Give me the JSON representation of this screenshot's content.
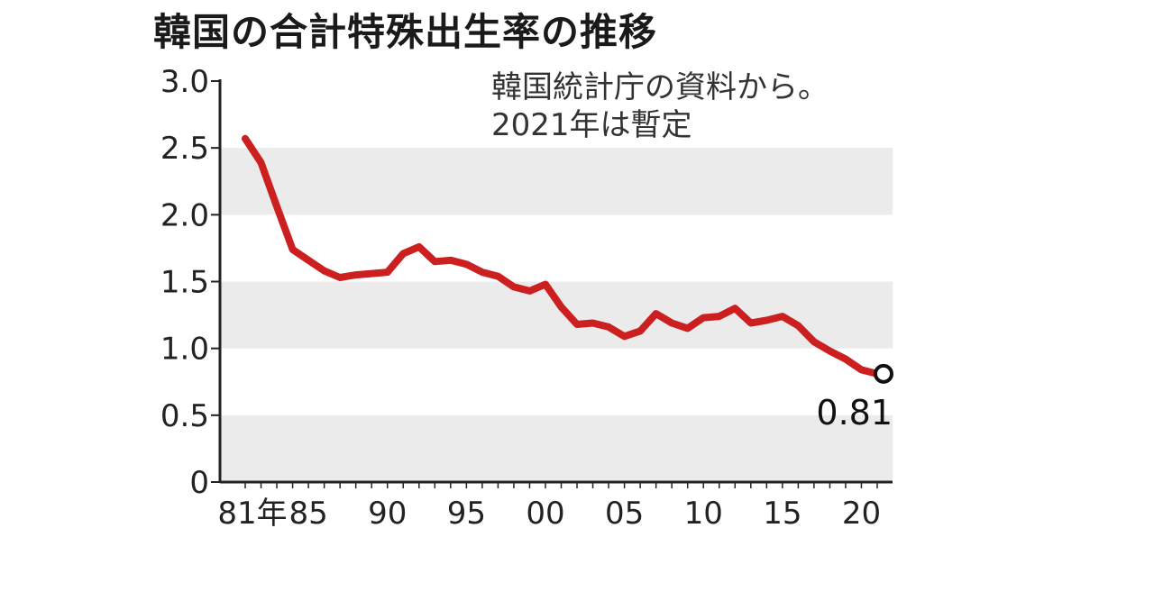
{
  "chart_data": {
    "type": "line",
    "title": "韓国の合計特殊出生率の推移",
    "note_lines": [
      "韓国統計庁の資料から。",
      "2021年は暫定"
    ],
    "xlabel": "",
    "ylabel": "",
    "ylim": [
      0,
      3.0
    ],
    "xlim": [
      1981,
      2021
    ],
    "yticks": [
      0,
      0.5,
      1.0,
      1.5,
      2.0,
      2.5,
      3.0
    ],
    "ytick_labels": [
      "0",
      "0.5",
      "1.0",
      "1.5",
      "2.0",
      "2.5",
      "3.0"
    ],
    "xticks": [
      1981,
      1985,
      1990,
      1995,
      2000,
      2005,
      2010,
      2015,
      2020
    ],
    "xtick_labels": [
      "81年",
      "85",
      "90",
      "95",
      "00",
      "05",
      "10",
      "15",
      "20"
    ],
    "grid": "alternating horizontal bands",
    "series": [
      {
        "color": "#cc1f1f",
        "x": [
          1981,
          1982,
          1983,
          1984,
          1985,
          1986,
          1987,
          1988,
          1989,
          1990,
          1991,
          1992,
          1993,
          1994,
          1995,
          1996,
          1997,
          1998,
          1999,
          2000,
          2001,
          2002,
          2003,
          2004,
          2005,
          2006,
          2007,
          2008,
          2009,
          2010,
          2011,
          2012,
          2013,
          2014,
          2015,
          2016,
          2017,
          2018,
          2019,
          2020,
          2021
        ],
        "values": [
          2.57,
          2.39,
          2.06,
          1.74,
          1.66,
          1.58,
          1.53,
          1.55,
          1.56,
          1.57,
          1.71,
          1.76,
          1.65,
          1.66,
          1.63,
          1.57,
          1.54,
          1.46,
          1.43,
          1.48,
          1.31,
          1.18,
          1.19,
          1.16,
          1.09,
          1.13,
          1.26,
          1.19,
          1.15,
          1.23,
          1.24,
          1.3,
          1.19,
          1.21,
          1.24,
          1.17,
          1.05,
          0.98,
          0.92,
          0.84,
          0.81
        ]
      }
    ],
    "annotation": {
      "x": 2021,
      "y": 0.81,
      "label": "0.81"
    }
  }
}
